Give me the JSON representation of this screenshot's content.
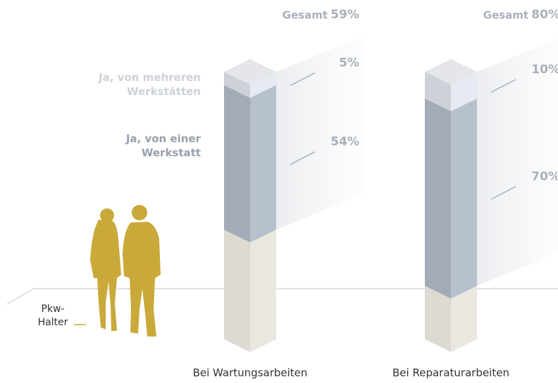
{
  "chart_data": {
    "type": "stacked-column-3d",
    "categories": [
      "Bei Wartungsarbeiten",
      "Bei Reparaturarbeiten"
    ],
    "series": [
      {
        "name": "Ja, von einer Werkstatt",
        "color": "#a3abb7",
        "values": [
          54,
          70
        ],
        "value_labels": [
          "54%",
          "70%"
        ]
      },
      {
        "name": "Ja, von mehreren Werkstätten",
        "color": "#cdd1d8",
        "values": [
          5,
          10
        ],
        "value_labels": [
          "5%",
          "10%"
        ]
      }
    ],
    "totals": {
      "label": "Gesamt",
      "values": [
        59,
        80
      ],
      "value_labels": [
        "59%",
        "80%"
      ]
    },
    "ylim": [
      0,
      100
    ],
    "base_color": "#dcdad2"
  },
  "annotation": {
    "label": "Pkw-Halter",
    "color": "#c9a93a"
  }
}
